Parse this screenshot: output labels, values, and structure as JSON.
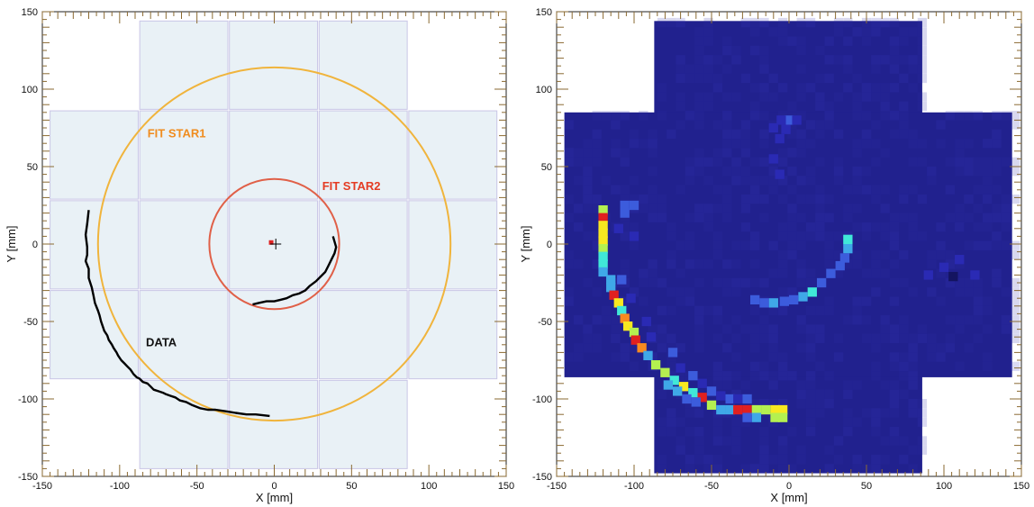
{
  "chart_data": [
    {
      "type": "scatter",
      "title": "",
      "xlabel": "X [mm]",
      "ylabel": "Y [mm]",
      "xlim": [
        -150,
        150
      ],
      "ylim": [
        -150,
        150
      ],
      "xticks": [
        -150,
        -100,
        -50,
        0,
        50,
        100,
        150
      ],
      "yticks": [
        -150,
        -100,
        -50,
        0,
        50,
        100,
        150
      ],
      "tile_fill": "#e9f1f6",
      "tile_stroke": "#c9c6e6",
      "tiles_x": [
        [
          -87,
          -30
        ],
        [
          -29,
          28
        ],
        [
          29,
          86
        ]
      ],
      "tiles_y": [
        [
          -145,
          144
        ]
      ],
      "tiles_x_wide": [
        [
          -145,
          -88
        ],
        [
          87,
          144
        ]
      ],
      "tiles_y_wide": [
        [
          -87,
          86
        ]
      ],
      "circles": [
        {
          "name": "FIT STAR1",
          "cx": 0,
          "cy": 0,
          "r": 114,
          "color": "#f0b43c"
        },
        {
          "name": "FIT STAR2",
          "cx": 0,
          "cy": 0,
          "r": 42,
          "color": "#e06048"
        }
      ],
      "annotations": [
        {
          "text": "FIT STAR1",
          "x": -82,
          "y": 69,
          "color": "#f08c1e"
        },
        {
          "text": "FIT STAR2",
          "x": 31,
          "y": 35,
          "color": "#e43c24"
        },
        {
          "text": "DATA",
          "x": -83,
          "y": -66,
          "color": "#111111"
        }
      ],
      "series": [
        {
          "name": "DATA",
          "color": "#000000",
          "x": [
            -120,
            -121,
            -122,
            -121,
            -121,
            -122,
            -120,
            -120,
            -118,
            -117,
            -116,
            -114,
            -113,
            -112,
            -111,
            -110,
            -108,
            -107,
            -105,
            -104,
            -102,
            -101,
            -99,
            -97,
            -95,
            -93,
            -91,
            -89,
            -87,
            -85,
            -82,
            -80,
            -78,
            -75,
            -72,
            -70,
            -67,
            -64,
            -61,
            -57,
            -53,
            -48,
            -43,
            -38,
            -31,
            -25,
            -18,
            -12,
            -3
          ],
          "y": [
            22,
            13,
            6,
            -2,
            -7,
            -11,
            -16,
            -22,
            -28,
            -33,
            -38,
            -43,
            -46,
            -50,
            -53,
            -56,
            -59,
            -62,
            -65,
            -67,
            -70,
            -72,
            -75,
            -77,
            -79,
            -81,
            -84,
            -86,
            -87,
            -89,
            -90,
            -92,
            -94,
            -95,
            -96,
            -97,
            -98,
            -99,
            -101,
            -102,
            -104,
            -106,
            -107,
            -107,
            -108,
            -109,
            -110,
            -110,
            -111
          ]
        },
        {
          "name": "DATA",
          "color": "#000000",
          "x": [
            38,
            40,
            39,
            37,
            35,
            33,
            30,
            27,
            23,
            20,
            16,
            12,
            8,
            4,
            0,
            -5,
            -10,
            -14
          ],
          "y": [
            5,
            -2,
            -6,
            -10,
            -14,
            -18,
            -21,
            -24,
            -27,
            -30,
            -32,
            -33,
            -35,
            -36,
            -37,
            -37,
            -38,
            -39
          ]
        }
      ],
      "markers": [
        {
          "type": "square",
          "x": -2,
          "y": 1,
          "color": "#dd2222"
        },
        {
          "type": "cross",
          "x": 1,
          "y": 0,
          "color": "#000000"
        }
      ]
    },
    {
      "type": "heatmap",
      "title": "",
      "xlabel": "X [mm]",
      "ylabel": "Y [mm]",
      "xlim": [
        -150,
        150
      ],
      "ylim": [
        -150,
        150
      ],
      "xticks": [
        -150,
        -100,
        -50,
        0,
        50,
        100,
        150
      ],
      "yticks": [
        -150,
        -100,
        -50,
        0,
        50,
        100,
        150
      ],
      "background_color": "#21218e",
      "colorscale": [
        "#2a2ab4",
        "#3c5cdc",
        "#3fa8e8",
        "#40e8d8",
        "#b4f050",
        "#f8e820",
        "#f88a20",
        "#e02020"
      ],
      "cells": [
        [
          -120,
          22,
          4
        ],
        [
          -120,
          17,
          7
        ],
        [
          -120,
          12,
          5
        ],
        [
          -120,
          7,
          5
        ],
        [
          -120,
          2,
          5
        ],
        [
          -120,
          -3,
          4
        ],
        [
          -120,
          -8,
          3
        ],
        [
          -120,
          -13,
          3
        ],
        [
          -120,
          -18,
          2
        ],
        [
          -115,
          -23,
          2
        ],
        [
          -115,
          -28,
          2
        ],
        [
          -113,
          -33,
          7
        ],
        [
          -110,
          -38,
          5
        ],
        [
          -108,
          -43,
          3
        ],
        [
          -106,
          -48,
          6
        ],
        [
          -104,
          -53,
          5
        ],
        [
          -100,
          -57,
          4
        ],
        [
          -99,
          -62,
          7
        ],
        [
          -95,
          -67,
          6
        ],
        [
          -91,
          -72,
          2
        ],
        [
          -86,
          -78,
          4
        ],
        [
          -80,
          -83,
          4
        ],
        [
          -74,
          -88,
          3
        ],
        [
          -68,
          -92,
          5
        ],
        [
          -62,
          -96,
          3
        ],
        [
          -56,
          -99,
          7
        ],
        [
          -50,
          -104,
          4
        ],
        [
          -44,
          -107,
          2
        ],
        [
          -38,
          -107,
          2
        ],
        [
          -33,
          -107,
          7
        ],
        [
          -27,
          -107,
          7
        ],
        [
          -21,
          -107,
          4
        ],
        [
          -15,
          -107,
          4
        ],
        [
          -9,
          -107,
          5
        ],
        [
          -4,
          -107,
          5
        ],
        [
          -4,
          -112,
          4
        ],
        [
          -9,
          -112,
          4
        ],
        [
          -21,
          -112,
          2
        ],
        [
          -27,
          -112,
          1
        ],
        [
          38,
          3,
          3
        ],
        [
          38,
          -3,
          2
        ],
        [
          36,
          -9,
          1
        ],
        [
          33,
          -14,
          1
        ],
        [
          27,
          -19,
          1
        ],
        [
          21,
          -25,
          1
        ],
        [
          15,
          -31,
          3
        ],
        [
          9,
          -34,
          2
        ],
        [
          3,
          -36,
          1
        ],
        [
          -3,
          -37,
          1
        ],
        [
          -10,
          -38,
          2
        ],
        [
          -16,
          -38,
          1
        ],
        [
          -22,
          -36,
          1
        ],
        [
          -106,
          25,
          1
        ],
        [
          -106,
          20,
          1
        ],
        [
          -110,
          10,
          0
        ],
        [
          -100,
          25,
          1
        ],
        [
          -100,
          5,
          0
        ],
        [
          -108,
          -23,
          1
        ],
        [
          -102,
          -35,
          0
        ],
        [
          -92,
          -50,
          0
        ],
        [
          -89,
          -60,
          0
        ],
        [
          -75,
          -70,
          1
        ],
        [
          -70,
          -80,
          0
        ],
        [
          -62,
          -85,
          1
        ],
        [
          -56,
          -90,
          0
        ],
        [
          -50,
          -95,
          1
        ],
        [
          -44,
          -98,
          0
        ],
        [
          -38,
          -100,
          1
        ],
        [
          -33,
          -100,
          0
        ],
        [
          -27,
          -100,
          1
        ],
        [
          -60,
          -102,
          1
        ],
        [
          -66,
          -100,
          1
        ],
        [
          -72,
          -95,
          2
        ],
        [
          -78,
          -91,
          2
        ],
        [
          0,
          80,
          1
        ],
        [
          -5,
          80,
          0
        ],
        [
          -10,
          75,
          0
        ],
        [
          -2,
          74,
          0
        ],
        [
          5,
          80,
          0
        ],
        [
          -6,
          68,
          0
        ],
        [
          -10,
          55,
          0
        ],
        [
          -6,
          45,
          0
        ],
        [
          90,
          -20,
          0
        ],
        [
          100,
          -15,
          0
        ],
        [
          110,
          -10,
          0
        ],
        [
          120,
          -20,
          0
        ]
      ],
      "dark_cells": [
        [
          106,
          -21
        ]
      ]
    }
  ]
}
